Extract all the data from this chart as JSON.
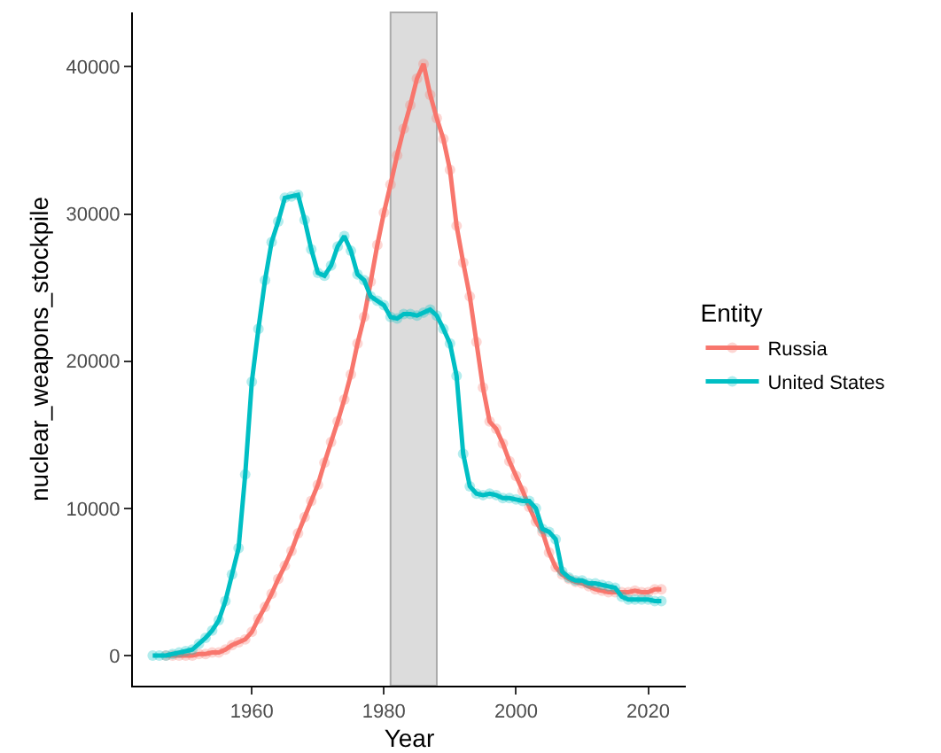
{
  "chart_data": {
    "type": "line",
    "xlabel": "Year",
    "ylabel": "nuclear_weapons_stockpile",
    "legend_title": "Entity",
    "legend": "right",
    "grid": false,
    "marker": "circle",
    "line_style": "solid",
    "x": [
      1945,
      1946,
      1947,
      1948,
      1949,
      1950,
      1951,
      1952,
      1953,
      1954,
      1955,
      1956,
      1957,
      1958,
      1959,
      1960,
      1961,
      1962,
      1963,
      1964,
      1965,
      1966,
      1967,
      1968,
      1969,
      1970,
      1971,
      1972,
      1973,
      1974,
      1975,
      1976,
      1977,
      1978,
      1979,
      1980,
      1981,
      1982,
      1983,
      1984,
      1985,
      1986,
      1987,
      1988,
      1989,
      1990,
      1991,
      1992,
      1993,
      1994,
      1995,
      1996,
      1997,
      1998,
      1999,
      2000,
      2001,
      2002,
      2003,
      2004,
      2005,
      2006,
      2007,
      2008,
      2009,
      2010,
      2011,
      2012,
      2013,
      2014,
      2015,
      2016,
      2017,
      2018,
      2019,
      2020,
      2021,
      2022
    ],
    "xlim": [
      1942,
      2025.7
    ],
    "xticks": [
      1960,
      1980,
      2000,
      2020
    ],
    "ylim": [
      -2050,
      43700
    ],
    "yticks": [
      0,
      10000,
      20000,
      30000,
      40000
    ],
    "series": [
      {
        "name": "Russia",
        "color": "#f8766d",
        "values": [
          null,
          null,
          0,
          0,
          0,
          0,
          0,
          100,
          100,
          200,
          200,
          400,
          700,
          900,
          1100,
          1600,
          2500,
          3300,
          4200,
          5200,
          6100,
          7100,
          8300,
          9400,
          10500,
          11600,
          13100,
          14500,
          15900,
          17400,
          19100,
          21200,
          23000,
          25400,
          27900,
          30100,
          32000,
          34000,
          35800,
          37400,
          39200,
          40200,
          38100,
          36500,
          35100,
          33000,
          29200,
          26700,
          24400,
          21300,
          18200,
          15900,
          15400,
          14400,
          13200,
          12200,
          11200,
          10100,
          9100,
          8400,
          7000,
          6000,
          5500,
          5200,
          5000,
          4900,
          4700,
          4500,
          4400,
          4300,
          4300,
          4300,
          4300,
          4400,
          4300,
          4300,
          4500,
          4500
        ]
      },
      {
        "name": "United States",
        "color": "#00bfc4",
        "values": [
          0,
          0,
          0,
          100,
          200,
          300,
          400,
          800,
          1200,
          1700,
          2400,
          3700,
          5500,
          7300,
          12300,
          18600,
          22200,
          25500,
          28100,
          29500,
          31100,
          31200,
          31300,
          29600,
          27600,
          26000,
          25800,
          26500,
          27800,
          28500,
          27500,
          25900,
          25500,
          24400,
          24100,
          23800,
          23000,
          22900,
          23200,
          23200,
          23100,
          23300,
          23500,
          23100,
          22200,
          21200,
          19000,
          13700,
          11500,
          11000,
          10900,
          11000,
          10900,
          10700,
          10700,
          10600,
          10500,
          10500,
          10000,
          8600,
          8400,
          7900,
          5700,
          5300,
          5100,
          5100,
          4900,
          4900,
          4800,
          4700,
          4600,
          4000,
          3800,
          3800,
          3800,
          3800,
          3700,
          3700
        ]
      }
    ],
    "bands": [
      {
        "axis": "x",
        "from": 1981,
        "to": 1988,
        "color": "#dcdcdc"
      }
    ]
  }
}
